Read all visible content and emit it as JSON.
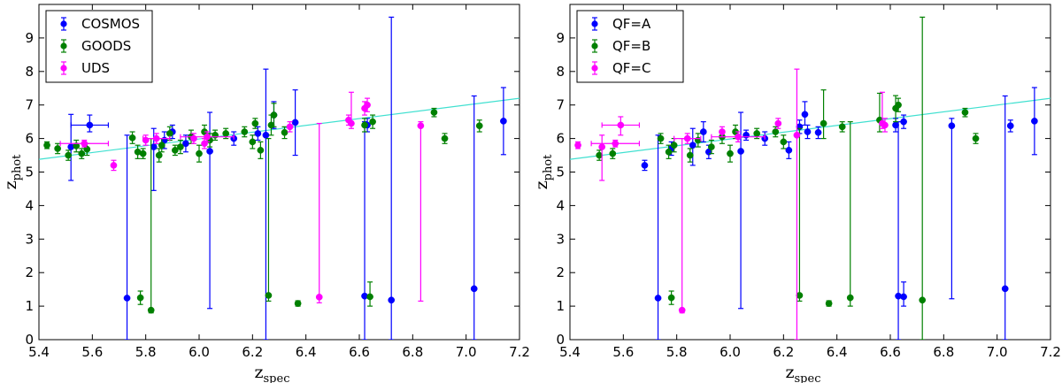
{
  "chart_data": [
    {
      "type": "scatter",
      "xlabel": "z",
      "xlabel_sub": "spec",
      "ylabel": "z",
      "ylabel_sub": "phot",
      "xlim": [
        5.4,
        7.2
      ],
      "ylim": [
        0,
        10
      ],
      "xticks": [
        "5.4",
        "5.6",
        "5.8",
        "6.0",
        "6.2",
        "6.4",
        "6.6",
        "6.8",
        "7.0",
        "7.2"
      ],
      "yticks": [
        "0",
        "1",
        "2",
        "3",
        "4",
        "5",
        "6",
        "7",
        "8",
        "9"
      ],
      "legend_position": "top-left",
      "fit_line": {
        "color": "#40e0d0",
        "x": [
          5.4,
          7.2
        ],
        "y": [
          5.38,
          7.2
        ]
      },
      "series": [
        {
          "name": "COSMOS",
          "color": "#0000ff",
          "points": [
            {
              "x": 5.52,
              "y": 5.75,
              "lo": 4.75,
              "hi": 6.72
            },
            {
              "x": 5.59,
              "y": 6.4,
              "lo": 6.2,
              "hi": 6.7,
              "xerr": 0.07
            },
            {
              "x": 5.73,
              "y": 1.24,
              "lo": 0.0,
              "hi": 6.1
            },
            {
              "x": 5.83,
              "y": 5.75,
              "lo": 4.45,
              "hi": 6.3
            },
            {
              "x": 5.87,
              "y": 5.95,
              "lo": 5.7,
              "hi": 6.2
            },
            {
              "x": 5.9,
              "y": 6.2,
              "lo": 6.0,
              "hi": 6.4
            },
            {
              "x": 5.95,
              "y": 5.85,
              "lo": 5.6,
              "hi": 6.1
            },
            {
              "x": 6.04,
              "y": 5.62,
              "lo": 0.93,
              "hi": 6.78
            },
            {
              "x": 6.13,
              "y": 6.0,
              "lo": 5.8,
              "hi": 6.2
            },
            {
              "x": 6.22,
              "y": 6.15,
              "lo": 5.95,
              "hi": 6.35
            },
            {
              "x": 6.25,
              "y": 6.1,
              "lo": 0.0,
              "hi": 8.07
            },
            {
              "x": 6.28,
              "y": 6.7,
              "lo": 6.3,
              "hi": 7.1
            },
            {
              "x": 6.36,
              "y": 6.48,
              "lo": 5.5,
              "hi": 7.45
            },
            {
              "x": 6.62,
              "y": 1.3,
              "lo": 0.0,
              "hi": 6.5
            },
            {
              "x": 6.63,
              "y": 6.4,
              "lo": 6.2,
              "hi": 6.6
            },
            {
              "x": 6.72,
              "y": 1.18,
              "lo": 0.0,
              "hi": 9.62
            },
            {
              "x": 7.03,
              "y": 1.52,
              "lo": 0.0,
              "hi": 7.27
            },
            {
              "x": 7.14,
              "y": 6.52,
              "lo": 5.52,
              "hi": 7.52
            }
          ]
        },
        {
          "name": "GOODS",
          "color": "#008000",
          "points": [
            {
              "x": 5.43,
              "y": 5.8,
              "lo": 5.7,
              "hi": 5.9
            },
            {
              "x": 5.47,
              "y": 5.7,
              "lo": 5.55,
              "hi": 5.85
            },
            {
              "x": 5.51,
              "y": 5.5,
              "lo": 5.35,
              "hi": 5.65
            },
            {
              "x": 5.54,
              "y": 5.78,
              "lo": 5.6,
              "hi": 5.95
            },
            {
              "x": 5.56,
              "y": 5.55,
              "lo": 5.4,
              "hi": 5.7
            },
            {
              "x": 5.58,
              "y": 5.68,
              "lo": 5.5,
              "hi": 5.85
            },
            {
              "x": 5.75,
              "y": 6.02,
              "lo": 5.85,
              "hi": 6.2
            },
            {
              "x": 5.77,
              "y": 5.6,
              "lo": 5.4,
              "hi": 5.8
            },
            {
              "x": 5.78,
              "y": 1.25,
              "lo": 1.05,
              "hi": 1.45
            },
            {
              "x": 5.79,
              "y": 5.55,
              "lo": 5.4,
              "hi": 5.7
            },
            {
              "x": 5.82,
              "y": 0.88,
              "lo": 0.8,
              "hi": 6.0
            },
            {
              "x": 5.85,
              "y": 5.5,
              "lo": 5.3,
              "hi": 5.7
            },
            {
              "x": 5.86,
              "y": 5.8,
              "lo": 5.6,
              "hi": 6.0
            },
            {
              "x": 5.89,
              "y": 6.15,
              "lo": 5.95,
              "hi": 6.35
            },
            {
              "x": 5.91,
              "y": 5.65,
              "lo": 5.5,
              "hi": 5.8
            },
            {
              "x": 5.93,
              "y": 5.75,
              "lo": 5.55,
              "hi": 5.95
            },
            {
              "x": 5.97,
              "y": 6.05,
              "lo": 5.85,
              "hi": 6.25
            },
            {
              "x": 6.0,
              "y": 5.55,
              "lo": 5.3,
              "hi": 5.8
            },
            {
              "x": 6.02,
              "y": 6.2,
              "lo": 6.0,
              "hi": 6.4
            },
            {
              "x": 6.04,
              "y": 5.95,
              "lo": 5.75,
              "hi": 6.15
            },
            {
              "x": 6.06,
              "y": 6.1,
              "lo": 5.95,
              "hi": 6.25
            },
            {
              "x": 6.1,
              "y": 6.15,
              "lo": 6.0,
              "hi": 6.3
            },
            {
              "x": 6.17,
              "y": 6.2,
              "lo": 6.05,
              "hi": 6.35
            },
            {
              "x": 6.2,
              "y": 5.9,
              "lo": 5.7,
              "hi": 6.1
            },
            {
              "x": 6.21,
              "y": 6.45,
              "lo": 6.3,
              "hi": 6.6
            },
            {
              "x": 6.23,
              "y": 5.65,
              "lo": 5.4,
              "hi": 5.9
            },
            {
              "x": 6.26,
              "y": 1.32,
              "lo": 1.15,
              "hi": 6.0
            },
            {
              "x": 6.27,
              "y": 6.4,
              "lo": 6.1,
              "hi": 6.7
            },
            {
              "x": 6.28,
              "y": 6.7,
              "lo": 6.35,
              "hi": 7.05
            },
            {
              "x": 6.32,
              "y": 6.18,
              "lo": 6.0,
              "hi": 6.35
            },
            {
              "x": 6.37,
              "y": 1.08,
              "lo": 1.0,
              "hi": 1.16
            },
            {
              "x": 6.62,
              "y": 6.4,
              "lo": 6.2,
              "hi": 6.6
            },
            {
              "x": 6.64,
              "y": 1.28,
              "lo": 1.0,
              "hi": 1.72
            },
            {
              "x": 6.65,
              "y": 6.5,
              "lo": 6.3,
              "hi": 6.7
            },
            {
              "x": 6.88,
              "y": 6.78,
              "lo": 6.65,
              "hi": 6.9
            },
            {
              "x": 6.92,
              "y": 6.0,
              "lo": 5.85,
              "hi": 6.15
            },
            {
              "x": 7.05,
              "y": 6.38,
              "lo": 6.2,
              "hi": 6.55
            }
          ]
        },
        {
          "name": "UDS",
          "color": "#ff00ff",
          "points": [
            {
              "x": 5.57,
              "y": 5.85,
              "lo": 5.75,
              "hi": 5.95,
              "xerr": 0.09
            },
            {
              "x": 5.68,
              "y": 5.2,
              "lo": 5.05,
              "hi": 5.35
            },
            {
              "x": 5.8,
              "y": 5.95,
              "lo": 5.8,
              "hi": 6.1
            },
            {
              "x": 5.84,
              "y": 6.0,
              "lo": 5.85,
              "hi": 6.15,
              "xerr": 0.05
            },
            {
              "x": 5.98,
              "y": 6.0,
              "lo": 5.85,
              "hi": 6.15
            },
            {
              "x": 6.02,
              "y": 5.85,
              "lo": 5.7,
              "hi": 6.0
            },
            {
              "x": 6.03,
              "y": 6.05,
              "lo": 5.9,
              "hi": 6.2,
              "xerr": 0.1
            },
            {
              "x": 6.34,
              "y": 6.35,
              "lo": 6.2,
              "hi": 6.5
            },
            {
              "x": 6.45,
              "y": 1.27,
              "lo": 1.1,
              "hi": 6.45
            },
            {
              "x": 6.56,
              "y": 6.55,
              "lo": 6.4,
              "hi": 6.7
            },
            {
              "x": 6.57,
              "y": 6.45,
              "lo": 6.3,
              "hi": 7.38
            },
            {
              "x": 6.62,
              "y": 6.9,
              "lo": 6.7,
              "hi": 7.1
            },
            {
              "x": 6.63,
              "y": 7.0,
              "lo": 6.8,
              "hi": 7.2
            },
            {
              "x": 6.83,
              "y": 6.38,
              "lo": 1.15,
              "hi": 6.5
            }
          ]
        }
      ]
    },
    {
      "type": "scatter",
      "xlabel": "z",
      "xlabel_sub": "spec",
      "ylabel": "z",
      "ylabel_sub": "phot",
      "xlim": [
        5.4,
        7.2
      ],
      "ylim": [
        0,
        10
      ],
      "xticks": [
        "5.4",
        "5.6",
        "5.8",
        "6.0",
        "6.2",
        "6.4",
        "6.6",
        "6.8",
        "7.0",
        "7.2"
      ],
      "yticks": [
        "0",
        "1",
        "2",
        "3",
        "4",
        "5",
        "6",
        "7",
        "8",
        "9"
      ],
      "legend_position": "top-left",
      "fit_line": {
        "color": "#40e0d0",
        "x": [
          5.4,
          7.2
        ],
        "y": [
          5.38,
          7.2
        ]
      },
      "series": [
        {
          "name": "QF=A",
          "color": "#0000ff",
          "points": [
            {
              "x": 5.68,
              "y": 5.2,
              "lo": 5.05,
              "hi": 5.35
            },
            {
              "x": 5.73,
              "y": 1.24,
              "lo": 0.0,
              "hi": 6.1
            },
            {
              "x": 5.78,
              "y": 5.7,
              "lo": 5.5,
              "hi": 5.9
            },
            {
              "x": 5.86,
              "y": 5.8,
              "lo": 5.2,
              "hi": 6.3
            },
            {
              "x": 5.9,
              "y": 6.2,
              "lo": 5.9,
              "hi": 6.5
            },
            {
              "x": 5.92,
              "y": 5.6,
              "lo": 5.4,
              "hi": 5.8
            },
            {
              "x": 6.04,
              "y": 5.62,
              "lo": 0.93,
              "hi": 6.78
            },
            {
              "x": 6.06,
              "y": 6.1,
              "lo": 5.95,
              "hi": 6.25
            },
            {
              "x": 6.13,
              "y": 6.0,
              "lo": 5.8,
              "hi": 6.2
            },
            {
              "x": 6.22,
              "y": 5.65,
              "lo": 5.4,
              "hi": 5.9
            },
            {
              "x": 6.26,
              "y": 6.35,
              "lo": 6.15,
              "hi": 6.55
            },
            {
              "x": 6.28,
              "y": 6.72,
              "lo": 6.4,
              "hi": 7.1
            },
            {
              "x": 6.29,
              "y": 6.2,
              "lo": 6.0,
              "hi": 6.4
            },
            {
              "x": 6.33,
              "y": 6.18,
              "lo": 6.0,
              "hi": 6.35
            },
            {
              "x": 6.62,
              "y": 6.4,
              "lo": 6.2,
              "hi": 6.6
            },
            {
              "x": 6.63,
              "y": 1.3,
              "lo": 0.0,
              "hi": 6.5
            },
            {
              "x": 6.65,
              "y": 1.28,
              "lo": 1.0,
              "hi": 1.72
            },
            {
              "x": 6.65,
              "y": 6.5,
              "lo": 6.3,
              "hi": 6.7
            },
            {
              "x": 6.83,
              "y": 6.38,
              "lo": 1.22,
              "hi": 6.6
            },
            {
              "x": 7.03,
              "y": 1.52,
              "lo": 0.0,
              "hi": 7.27
            },
            {
              "x": 7.05,
              "y": 6.38,
              "lo": 6.2,
              "hi": 6.55
            },
            {
              "x": 7.14,
              "y": 6.52,
              "lo": 5.52,
              "hi": 7.52
            }
          ]
        },
        {
          "name": "QF=B",
          "color": "#008000",
          "points": [
            {
              "x": 5.51,
              "y": 5.5,
              "lo": 5.35,
              "hi": 5.65
            },
            {
              "x": 5.56,
              "y": 5.55,
              "lo": 5.4,
              "hi": 5.7
            },
            {
              "x": 5.74,
              "y": 6.0,
              "lo": 5.85,
              "hi": 6.15
            },
            {
              "x": 5.77,
              "y": 5.6,
              "lo": 5.4,
              "hi": 5.8
            },
            {
              "x": 5.78,
              "y": 1.25,
              "lo": 1.05,
              "hi": 1.45
            },
            {
              "x": 5.79,
              "y": 5.8,
              "lo": 5.6,
              "hi": 6.0
            },
            {
              "x": 5.85,
              "y": 5.5,
              "lo": 5.3,
              "hi": 5.7
            },
            {
              "x": 5.88,
              "y": 5.95,
              "lo": 5.75,
              "hi": 6.15
            },
            {
              "x": 5.93,
              "y": 5.75,
              "lo": 5.55,
              "hi": 5.95
            },
            {
              "x": 5.97,
              "y": 6.05,
              "lo": 5.85,
              "hi": 6.25
            },
            {
              "x": 6.0,
              "y": 5.55,
              "lo": 5.3,
              "hi": 5.8
            },
            {
              "x": 6.02,
              "y": 6.2,
              "lo": 6.0,
              "hi": 6.4
            },
            {
              "x": 6.1,
              "y": 6.15,
              "lo": 6.0,
              "hi": 6.3
            },
            {
              "x": 6.17,
              "y": 6.2,
              "lo": 6.05,
              "hi": 6.35
            },
            {
              "x": 6.2,
              "y": 5.9,
              "lo": 5.7,
              "hi": 6.1
            },
            {
              "x": 6.26,
              "y": 1.32,
              "lo": 1.15,
              "hi": 6.3
            },
            {
              "x": 6.35,
              "y": 6.45,
              "lo": 6.0,
              "hi": 7.45
            },
            {
              "x": 6.37,
              "y": 1.08,
              "lo": 1.0,
              "hi": 1.16
            },
            {
              "x": 6.42,
              "y": 6.35,
              "lo": 6.2,
              "hi": 6.5
            },
            {
              "x": 6.45,
              "y": 1.25,
              "lo": 1.0,
              "hi": 6.5
            },
            {
              "x": 6.56,
              "y": 6.55,
              "lo": 6.2,
              "hi": 7.35
            },
            {
              "x": 6.62,
              "y": 6.9,
              "lo": 6.5,
              "hi": 7.28
            },
            {
              "x": 6.63,
              "y": 7.0,
              "lo": 6.8,
              "hi": 7.2
            },
            {
              "x": 6.72,
              "y": 1.18,
              "lo": 0.0,
              "hi": 9.62
            },
            {
              "x": 6.88,
              "y": 6.78,
              "lo": 6.65,
              "hi": 6.9
            },
            {
              "x": 6.92,
              "y": 6.0,
              "lo": 5.85,
              "hi": 6.15
            }
          ]
        },
        {
          "name": "QF=C",
          "color": "#ff00ff",
          "points": [
            {
              "x": 5.43,
              "y": 5.8,
              "lo": 5.7,
              "hi": 5.9
            },
            {
              "x": 5.52,
              "y": 5.75,
              "lo": 4.75,
              "hi": 6.1
            },
            {
              "x": 5.57,
              "y": 5.85,
              "lo": 5.75,
              "hi": 5.95,
              "xerr": 0.09
            },
            {
              "x": 5.59,
              "y": 6.4,
              "lo": 6.1,
              "hi": 6.65,
              "xerr": 0.07
            },
            {
              "x": 5.82,
              "y": 0.88,
              "lo": 0.8,
              "hi": 6.0
            },
            {
              "x": 5.84,
              "y": 6.0,
              "lo": 5.85,
              "hi": 6.15,
              "xerr": 0.05
            },
            {
              "x": 5.97,
              "y": 6.2,
              "lo": 6.05,
              "hi": 6.35
            },
            {
              "x": 6.03,
              "y": 6.05,
              "lo": 5.9,
              "hi": 6.2,
              "xerr": 0.1
            },
            {
              "x": 6.18,
              "y": 6.45,
              "lo": 6.3,
              "hi": 6.6
            },
            {
              "x": 6.25,
              "y": 6.1,
              "lo": 0.0,
              "hi": 8.07
            },
            {
              "x": 6.57,
              "y": 6.45,
              "lo": 6.3,
              "hi": 7.38
            },
            {
              "x": 6.58,
              "y": 6.4,
              "lo": 6.2,
              "hi": 6.6
            }
          ]
        }
      ]
    }
  ]
}
